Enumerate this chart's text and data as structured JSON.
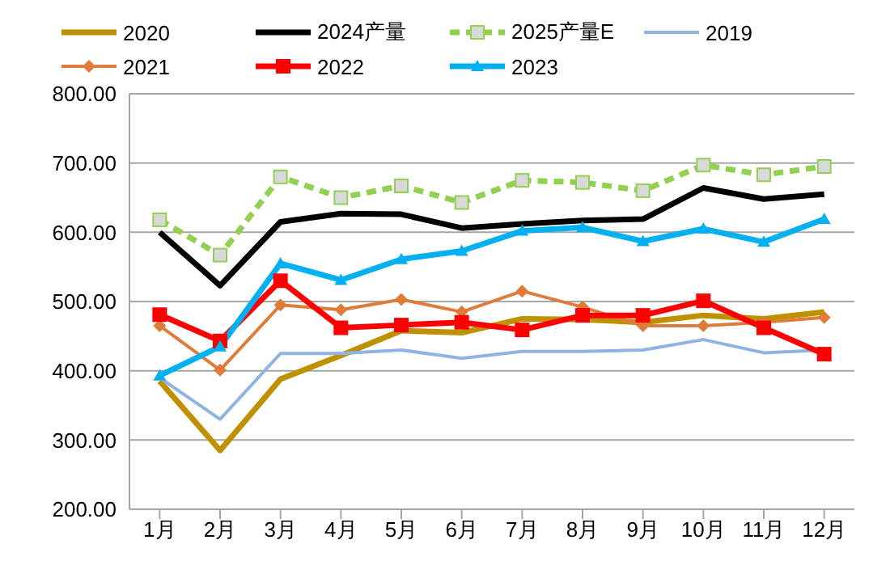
{
  "chart_data": {
    "type": "line",
    "categories": [
      "1月",
      "2月",
      "3月",
      "4月",
      "5月",
      "6月",
      "7月",
      "8月",
      "9月",
      "10月",
      "11月",
      "12月"
    ],
    "series": [
      {
        "name": "2020",
        "color": "#bf9000",
        "marker": "none",
        "values": [
          385,
          285,
          388,
          422,
          458,
          455,
          475,
          474,
          470,
          480,
          475,
          485
        ]
      },
      {
        "name": "2024产量",
        "color": "#000000",
        "marker": "none",
        "values": [
          600,
          523,
          615,
          627,
          626,
          606,
          612,
          617,
          619,
          664,
          648,
          655
        ]
      },
      {
        "name": "2025产量E",
        "color": "#92d050",
        "marker": "square",
        "line_style": "dashed",
        "values": [
          618,
          567,
          680,
          650,
          667,
          643,
          675,
          672,
          660,
          697,
          683,
          695
        ]
      },
      {
        "name": "2019",
        "color": "#8eb4e3",
        "marker": "none",
        "values": [
          390,
          330,
          425,
          425,
          430,
          418,
          428,
          428,
          430,
          445,
          426,
          430
        ]
      },
      {
        "name": "2021",
        "color": "#e07b39",
        "marker": "diamond",
        "values": [
          465,
          401,
          495,
          488,
          503,
          485,
          515,
          492,
          465,
          465,
          470,
          477
        ]
      },
      {
        "name": "2022",
        "color": "#ff0000",
        "marker": "square",
        "values": [
          481,
          443,
          530,
          462,
          466,
          470,
          459,
          480,
          480,
          501,
          462,
          424
        ]
      },
      {
        "name": "2023",
        "color": "#00b0f0",
        "marker": "triangle",
        "values": [
          393,
          435,
          555,
          531,
          561,
          573,
          602,
          607,
          587,
          605,
          586,
          619
        ]
      }
    ],
    "ylim": [
      200,
      800
    ],
    "yticks": [
      {
        "value": 200,
        "label": "200.00"
      },
      {
        "value": 300,
        "label": "300.00"
      },
      {
        "value": 400,
        "label": "400.00"
      },
      {
        "value": 500,
        "label": "500.00"
      },
      {
        "value": 600,
        "label": "600.00"
      },
      {
        "value": 700,
        "label": "700.00"
      },
      {
        "value": 800,
        "label": "800.00"
      }
    ],
    "grid": "y",
    "legend": "top"
  }
}
